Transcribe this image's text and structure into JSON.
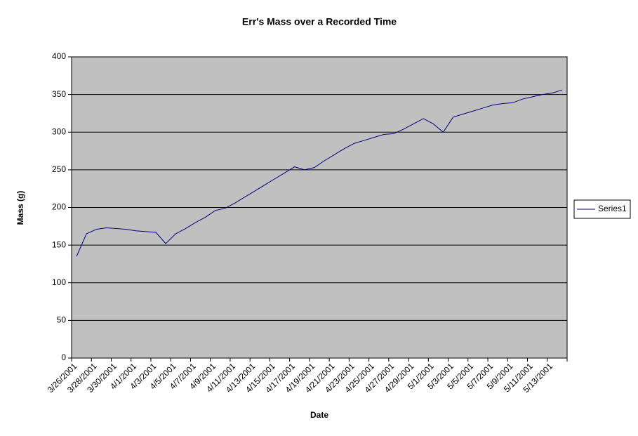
{
  "chart_data": {
    "type": "line",
    "title": "Err's Mass over a Recorded Time",
    "x_label": "Date",
    "y_label": "Mass (g)",
    "categories": [
      "3/26/2001",
      null,
      "3/28/2001",
      null,
      "3/30/2001",
      null,
      "4/1/2001",
      null,
      "4/3/2001",
      null,
      "4/5/2001",
      null,
      "4/7/2001",
      null,
      "4/9/2001",
      null,
      "4/11/2001",
      null,
      "4/13/2001",
      null,
      "4/15/2001",
      null,
      "4/17/2001",
      null,
      "4/19/2001",
      null,
      "4/21/2001",
      null,
      "4/23/2001",
      null,
      "4/25/2001",
      null,
      "4/27/2001",
      null,
      "4/29/2001",
      null,
      "5/1/2001",
      null,
      "5/3/2001",
      null,
      "5/5/2001",
      null,
      "5/7/2001",
      null,
      "5/9/2001",
      null,
      "5/11/2001",
      null,
      "5/13/2001",
      null
    ],
    "series": [
      {
        "name": "Series1",
        "color": "#000080",
        "values": [
          135,
          165,
          171,
          173,
          172,
          171,
          169,
          168,
          167,
          152,
          165,
          172,
          180,
          187,
          196,
          199,
          206,
          214,
          222,
          230,
          238,
          246,
          254,
          250,
          253,
          262,
          270,
          278,
          285,
          289,
          293,
          297,
          298,
          304,
          311,
          318,
          311,
          300,
          320,
          324,
          328,
          332,
          336,
          338,
          339,
          344,
          347,
          350,
          352,
          356
        ]
      }
    ],
    "ylim": [
      0,
      400
    ],
    "yticks": [
      0,
      50,
      100,
      150,
      200,
      250,
      300,
      350,
      400
    ],
    "grid": true,
    "legend": "right"
  }
}
